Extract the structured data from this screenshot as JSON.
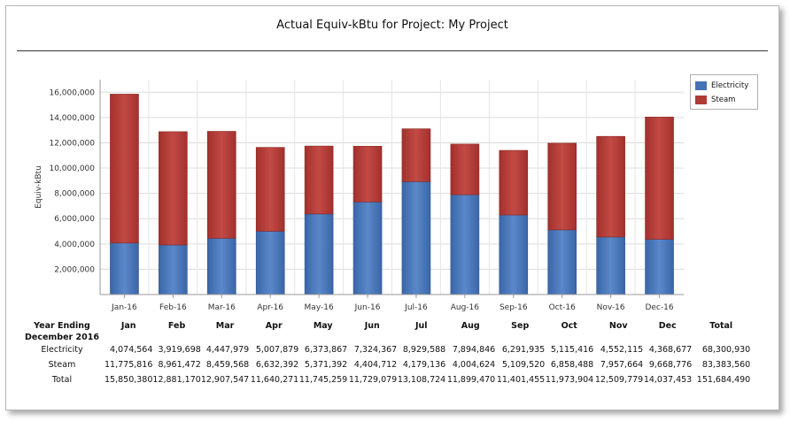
{
  "title": "Actual Equiv-kBtu for Project: My Project",
  "chart_data": {
    "type": "bar",
    "stacked": true,
    "title": "Actual Equiv-kBtu for Project: My Project",
    "xlabel": "",
    "ylabel": "Equiv-kBtu",
    "ylim": [
      0,
      17000000
    ],
    "yticks": [
      2000000,
      4000000,
      6000000,
      8000000,
      10000000,
      12000000,
      14000000,
      16000000
    ],
    "ytick_labels": [
      "2,000,000",
      "4,000,000",
      "6,000,000",
      "8,000,000",
      "10,000,000",
      "12,000,000",
      "14,000,000",
      "16,000,000"
    ],
    "categories": [
      "Jan-16",
      "Feb-16",
      "Mar-16",
      "Apr-16",
      "May-16",
      "Jun-16",
      "Jul-16",
      "Aug-16",
      "Sep-16",
      "Oct-16",
      "Nov-16",
      "Dec-16"
    ],
    "grid": true,
    "legend_position": "top-right",
    "series": [
      {
        "name": "Electricity",
        "color": "#4472b4",
        "values": [
          4074564,
          3919698,
          4447979,
          5007879,
          6373867,
          7324367,
          8929588,
          7894846,
          6291935,
          5115416,
          4552115,
          4368677
        ]
      },
      {
        "name": "Steam",
        "color": "#b23a36",
        "values": [
          11775816,
          8961472,
          8459568,
          6632392,
          5371392,
          4404712,
          4179136,
          4004624,
          5109520,
          6858488,
          7957664,
          9668776
        ]
      }
    ]
  },
  "table": {
    "header_line1": "Year Ending",
    "header_line2": "December 2016",
    "columns": [
      "Jan",
      "Feb",
      "Mar",
      "Apr",
      "May",
      "Jun",
      "Jul",
      "Aug",
      "Sep",
      "Oct",
      "Nov",
      "Dec",
      "Total"
    ],
    "rows": [
      {
        "label": "Electricity",
        "values": [
          "4,074,564",
          "3,919,698",
          "4,447,979",
          "5,007,879",
          "6,373,867",
          "7,324,367",
          "8,929,588",
          "7,894,846",
          "6,291,935",
          "5,115,416",
          "4,552,115",
          "4,368,677",
          "68,300,930"
        ]
      },
      {
        "label": "Steam",
        "values": [
          "11,775,816",
          "8,961,472",
          "8,459,568",
          "6,632,392",
          "5,371,392",
          "4,404,712",
          "4,179,136",
          "4,004,624",
          "5,109,520",
          "6,858,488",
          "7,957,664",
          "9,668,776",
          "83,383,560"
        ]
      },
      {
        "label": "Total",
        "values": [
          "15,850,380",
          "12,881,170",
          "12,907,547",
          "11,640,271",
          "11,745,259",
          "11,729,079",
          "13,108,724",
          "11,899,470",
          "11,401,455",
          "11,973,904",
          "12,509,779",
          "14,037,453",
          "151,684,490"
        ]
      }
    ]
  }
}
